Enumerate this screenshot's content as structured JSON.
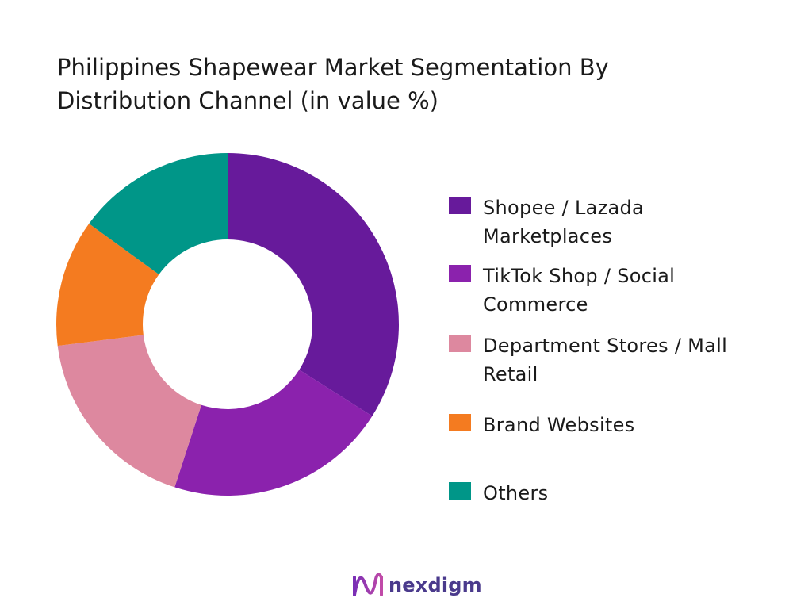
{
  "chart_data": {
    "type": "pie",
    "variant": "donut",
    "title_lines": [
      "Philippines Shapewear Market Segmentation By",
      "Distribution Channel (in value %)"
    ],
    "categories": [
      "Shopee / Lazada Marketplaces",
      "TikTok Shop / Social Commerce",
      "Department Stores / Mall Retail",
      "Brand Websites",
      "Others"
    ],
    "legend_lines": [
      [
        "Shopee / Lazada",
        "Marketplaces"
      ],
      [
        "TikTok Shop / Social",
        "Commerce"
      ],
      [
        "Department Stores / Mall",
        "Retail"
      ],
      [
        "Brand Websites"
      ],
      [
        "Others"
      ]
    ],
    "values": [
      34,
      21,
      18,
      12,
      15
    ],
    "colors": [
      "#671a9b",
      "#8b22ad",
      "#dd889f",
      "#f47b20",
      "#009688"
    ],
    "start_angle_deg": 0,
    "direction": "clockwise",
    "legend_position": "right"
  },
  "logo": {
    "text": "nexdigm",
    "icon": "nexdigm-wave-logo-icon"
  }
}
